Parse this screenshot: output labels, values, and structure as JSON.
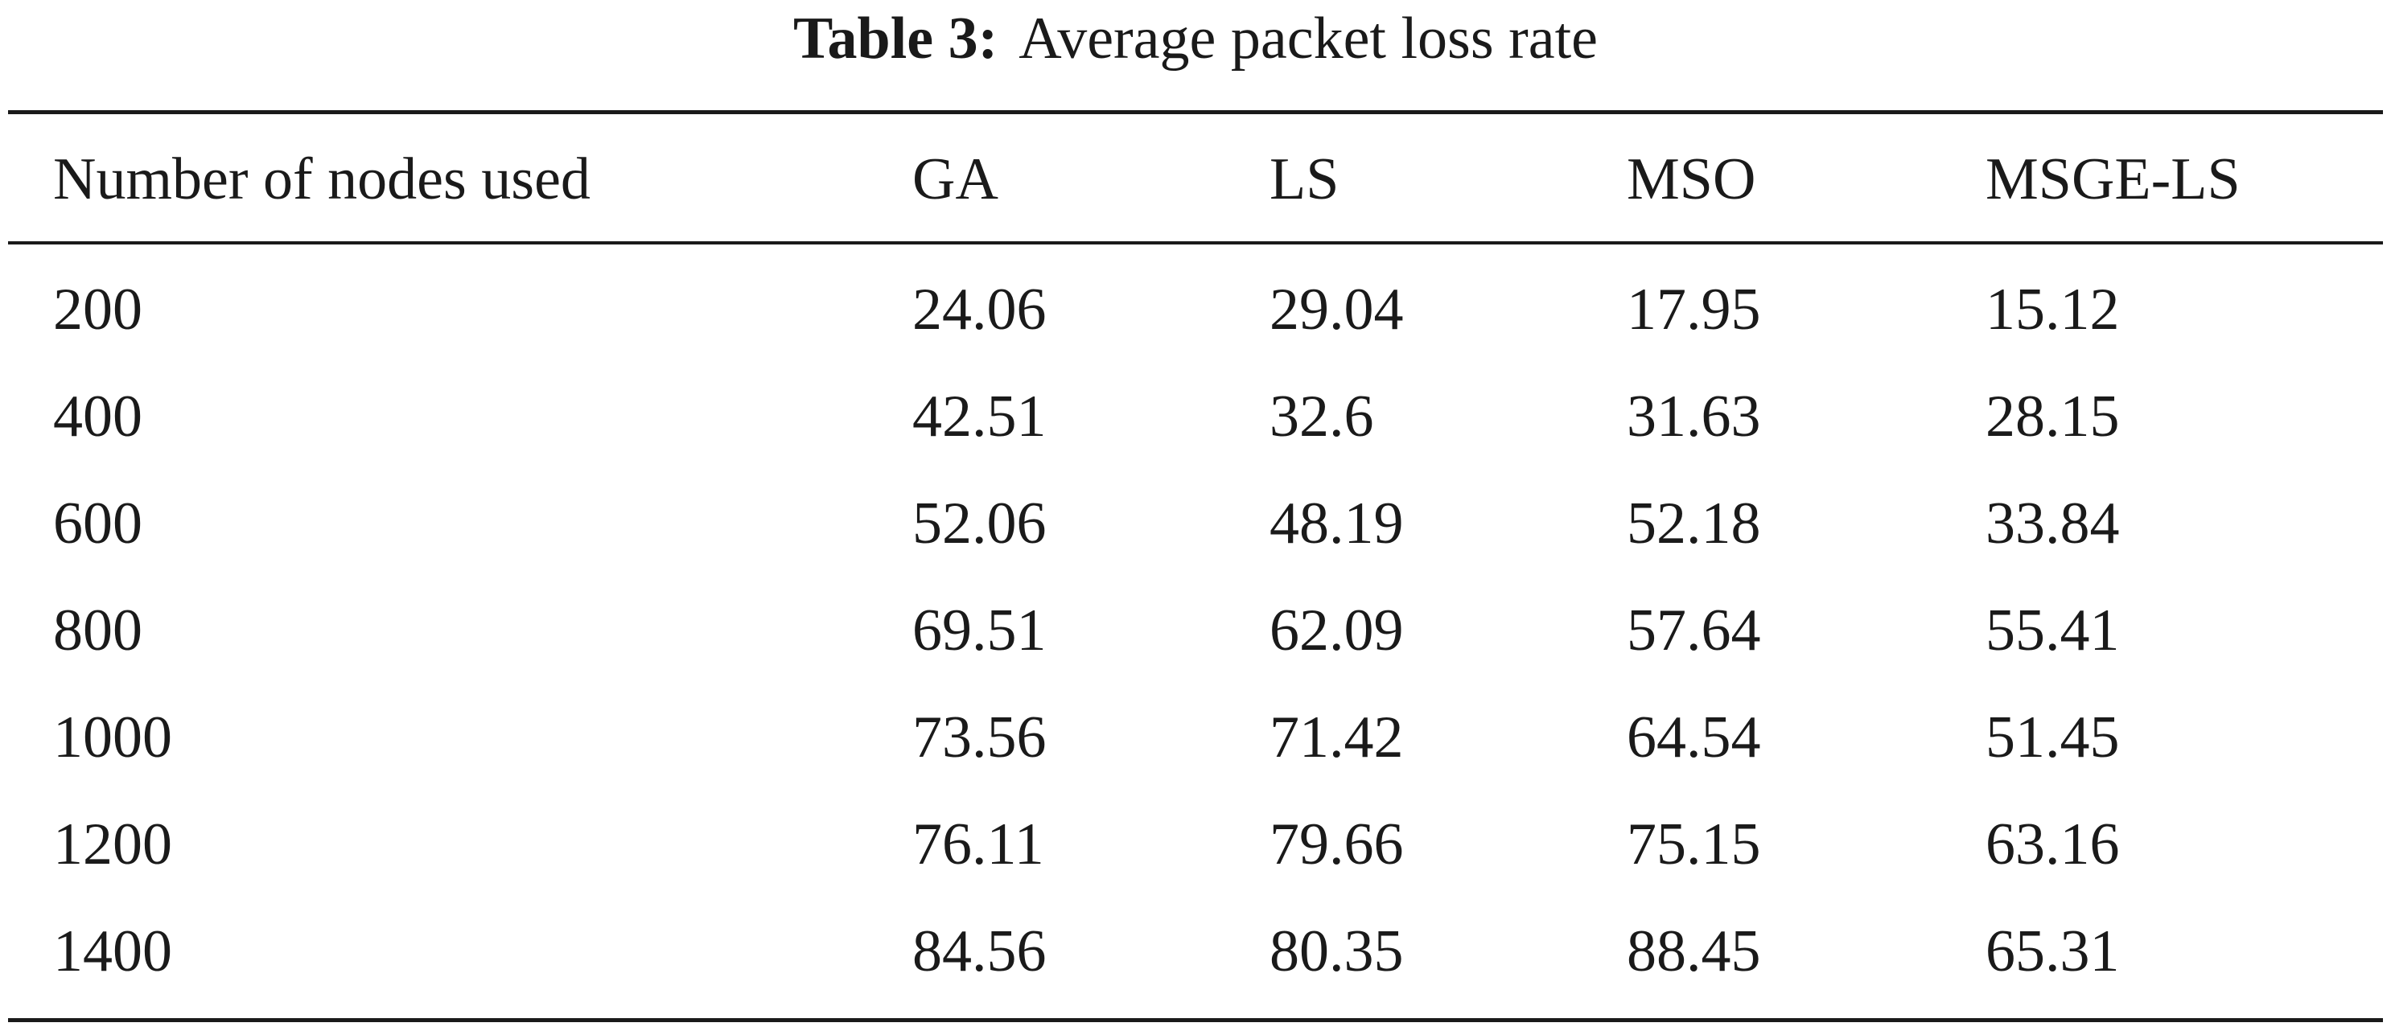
{
  "caption": {
    "label": "Table 3:",
    "text": "Average packet loss rate"
  },
  "table": {
    "headers": [
      "Number of nodes used",
      "GA",
      "LS",
      "MSO",
      "MSGE-LS"
    ],
    "rows": [
      [
        "200",
        "24.06",
        "29.04",
        "17.95",
        "15.12"
      ],
      [
        "400",
        "42.51",
        "32.6",
        "31.63",
        "28.15"
      ],
      [
        "600",
        "52.06",
        "48.19",
        "52.18",
        "33.84"
      ],
      [
        "800",
        "69.51",
        "62.09",
        "57.64",
        "55.41"
      ],
      [
        "1000",
        "73.56",
        "71.42",
        "64.54",
        "51.45"
      ],
      [
        "1200",
        "76.11",
        "79.66",
        "75.15",
        "63.16"
      ],
      [
        "1400",
        "84.56",
        "80.35",
        "88.45",
        "65.31"
      ]
    ]
  }
}
